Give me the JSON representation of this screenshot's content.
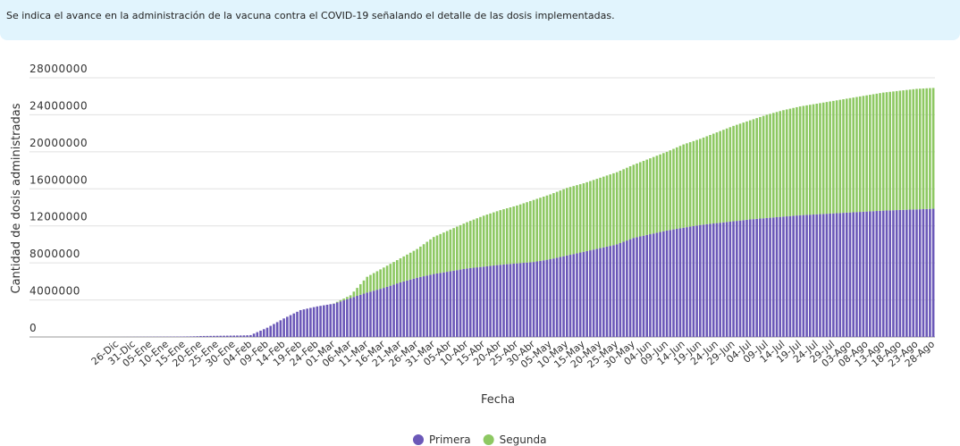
{
  "chart_data": {
    "type": "stacked-bar",
    "subtitle": "Se indica el avance en la administración de la vacuna contra el COVID-19 señalando el detalle de las dosis implementadas.",
    "x_label": "Fecha",
    "y_label": "Cantidad de dosis administradas",
    "ylim": [
      0,
      28000000
    ],
    "yticks": [
      0,
      4000000,
      8000000,
      12000000,
      16000000,
      20000000,
      24000000,
      28000000
    ],
    "grid": true,
    "legend": "bottom",
    "categories": [
      null,
      null,
      "26-Dic",
      null,
      null,
      null,
      null,
      "31-Dic",
      null,
      null,
      null,
      null,
      "05-Ene",
      null,
      null,
      null,
      null,
      "10-Ene",
      null,
      null,
      null,
      null,
      "15-Ene",
      null,
      null,
      null,
      null,
      "20-Ene",
      null,
      null,
      null,
      null,
      "25-Ene",
      null,
      null,
      null,
      null,
      "30-Ene",
      null,
      null,
      null,
      null,
      "04-Feb",
      null,
      null,
      null,
      null,
      "09-Feb",
      null,
      null,
      null,
      null,
      "14-Feb",
      null,
      null,
      null,
      null,
      "19-Feb",
      null,
      null,
      null,
      null,
      "24-Feb",
      null,
      null,
      null,
      null,
      "01-Mar",
      null,
      null,
      null,
      null,
      "06-Mar",
      null,
      null,
      null,
      null,
      "11-Mar",
      null,
      null,
      null,
      null,
      "16-Mar",
      null,
      null,
      null,
      null,
      "21-Mar",
      null,
      null,
      null,
      null,
      "26-Mar",
      null,
      null,
      null,
      null,
      "31-Mar",
      null,
      null,
      null,
      null,
      "05-Abr",
      null,
      null,
      null,
      null,
      "10-Abr",
      null,
      null,
      null,
      null,
      "15-Abr",
      null,
      null,
      null,
      null,
      "20-Abr",
      null,
      null,
      null,
      null,
      "25-Abr",
      null,
      null,
      null,
      null,
      "30-Abr",
      null,
      null,
      null,
      null,
      "05-May",
      null,
      null,
      null,
      null,
      "10-May",
      null,
      null,
      null,
      null,
      "15-May",
      null,
      null,
      null,
      null,
      "20-May",
      null,
      null,
      null,
      null,
      "25-May",
      null,
      null,
      null,
      null,
      "30-May",
      null,
      null,
      null,
      null,
      "04-Jun",
      null,
      null,
      null,
      null,
      "09-Jun",
      null,
      null,
      null,
      null,
      "14-Jun",
      null,
      null,
      null,
      null,
      "19-Jun",
      null,
      null,
      null,
      null,
      "24-Jun",
      null,
      null,
      null,
      null,
      "29-Jun",
      null,
      null,
      null,
      null,
      "04-Jul",
      null,
      null,
      null,
      null,
      "09-Jul",
      null,
      null,
      null,
      null,
      "14-Jul",
      null,
      null,
      null,
      null,
      "19-Jul",
      null,
      null,
      null,
      null,
      "24-Jul",
      null,
      null,
      null,
      null,
      "29-Jul",
      null,
      null,
      null,
      null,
      "03-Ago",
      null,
      null,
      null,
      null,
      "08-Ago",
      null,
      null,
      null,
      null,
      "13-Ago",
      null,
      null,
      null,
      null,
      "18-Ago",
      null,
      null,
      null,
      null,
      "23-Ago",
      null,
      null,
      null,
      null,
      "28-Ago"
    ],
    "series": [
      {
        "name": "Primera",
        "color": "#6b58b8",
        "values": [
          3000,
          4000,
          5000,
          6000,
          8000,
          10000,
          12000,
          14000,
          16000,
          18000,
          20000,
          22000,
          24000,
          26000,
          28000,
          30000,
          32000,
          34000,
          36000,
          38000,
          40000,
          45000,
          50000,
          55000,
          60000,
          70000,
          80000,
          100000,
          105000,
          110000,
          115000,
          120000,
          125000,
          130000,
          135000,
          140000,
          145000,
          150000,
          155000,
          160000,
          170000,
          180000,
          200000,
          360000,
          520000,
          680000,
          840000,
          1000000,
          1200000,
          1400000,
          1600000,
          1800000,
          2000000,
          2180000,
          2360000,
          2540000,
          2720000,
          2900000,
          2980000,
          3060000,
          3140000,
          3220000,
          3300000,
          3360000,
          3420000,
          3480000,
          3540000,
          3600000,
          3720000,
          3840000,
          3960000,
          4080000,
          4200000,
          4320000,
          4440000,
          4560000,
          4680000,
          4800000,
          4900000,
          5000000,
          5100000,
          5200000,
          5300000,
          5420000,
          5540000,
          5660000,
          5780000,
          5900000,
          6000000,
          6100000,
          6200000,
          6300000,
          6400000,
          6480000,
          6560000,
          6640000,
          6720000,
          6800000,
          6860000,
          6920000,
          6980000,
          7040000,
          7100000,
          7160000,
          7220000,
          7280000,
          7340000,
          7400000,
          7440000,
          7480000,
          7520000,
          7560000,
          7600000,
          7640000,
          7680000,
          7720000,
          7760000,
          7800000,
          7830000,
          7860000,
          7890000,
          7920000,
          7950000,
          7980000,
          8010000,
          8040000,
          8070000,
          8100000,
          8160000,
          8220000,
          8280000,
          8340000,
          8400000,
          8480000,
          8560000,
          8640000,
          8720000,
          8800000,
          8880000,
          8960000,
          9040000,
          9120000,
          9200000,
          9280000,
          9360000,
          9440000,
          9520000,
          9600000,
          9680000,
          9760000,
          9840000,
          9920000,
          10000000,
          10140000,
          10280000,
          10420000,
          10560000,
          10700000,
          10780000,
          10860000,
          10940000,
          11020000,
          11100000,
          11180000,
          11260000,
          11340000,
          11420000,
          11500000,
          11560000,
          11620000,
          11680000,
          11740000,
          11800000,
          11860000,
          11920000,
          11980000,
          12040000,
          12100000,
          12140000,
          12180000,
          12220000,
          12260000,
          12300000,
          12340000,
          12380000,
          12420000,
          12460000,
          12500000,
          12540000,
          12580000,
          12620000,
          12660000,
          12700000,
          12730000,
          12760000,
          12790000,
          12820000,
          12850000,
          12880000,
          12910000,
          12940000,
          12970000,
          13000000,
          13030000,
          13060000,
          13090000,
          13120000,
          13150000,
          13170000,
          13190000,
          13210000,
          13230000,
          13250000,
          13270000,
          13290000,
          13310000,
          13330000,
          13350000,
          13370000,
          13390000,
          13410000,
          13430000,
          13450000,
          13470000,
          13490000,
          13510000,
          13530000,
          13550000,
          13570000,
          13590000,
          13610000,
          13630000,
          13650000,
          13664000,
          13678000,
          13692000,
          13706000,
          13720000,
          13732000,
          13744000,
          13756000,
          13768000,
          13780000,
          13794000,
          13808000,
          13822000,
          13836000,
          13850000
        ]
      },
      {
        "name": "Segunda",
        "color": "#8dc862",
        "values": [
          0,
          0,
          0,
          0,
          0,
          0,
          0,
          0,
          0,
          0,
          0,
          0,
          0,
          0,
          0,
          0,
          0,
          0,
          0,
          0,
          0,
          0,
          0,
          0,
          0,
          0,
          0,
          0,
          0,
          0,
          0,
          0,
          0,
          0,
          0,
          0,
          0,
          0,
          0,
          0,
          0,
          0,
          0,
          0,
          0,
          0,
          0,
          0,
          0,
          0,
          0,
          0,
          0,
          0,
          0,
          0,
          0,
          0,
          0,
          0,
          0,
          0,
          0,
          0,
          0,
          0,
          0,
          20000,
          76000,
          132000,
          188000,
          244000,
          300000,
          580000,
          860000,
          1140000,
          1420000,
          1700000,
          1800000,
          1900000,
          2000000,
          2100000,
          2200000,
          2280000,
          2360000,
          2440000,
          2520000,
          2600000,
          2700000,
          2800000,
          2900000,
          3000000,
          3100000,
          3280000,
          3460000,
          3640000,
          3820000,
          4000000,
          4100000,
          4200000,
          4300000,
          4400000,
          4500000,
          4600000,
          4700000,
          4800000,
          4900000,
          5000000,
          5100000,
          5200000,
          5300000,
          5400000,
          5500000,
          5580000,
          5660000,
          5740000,
          5820000,
          5900000,
          5970000,
          6040000,
          6110000,
          6180000,
          6250000,
          6340000,
          6430000,
          6520000,
          6610000,
          6700000,
          6760000,
          6820000,
          6880000,
          6940000,
          7000000,
          7060000,
          7120000,
          7180000,
          7240000,
          7300000,
          7320000,
          7340000,
          7360000,
          7380000,
          7400000,
          7440000,
          7480000,
          7520000,
          7560000,
          7600000,
          7640000,
          7680000,
          7720000,
          7760000,
          7800000,
          7820000,
          7840000,
          7860000,
          7880000,
          7900000,
          7960000,
          8020000,
          8080000,
          8140000,
          8200000,
          8260000,
          8320000,
          8380000,
          8440000,
          8500000,
          8600000,
          8700000,
          8800000,
          8900000,
          9000000,
          9060000,
          9120000,
          9180000,
          9240000,
          9300000,
          9400000,
          9500000,
          9600000,
          9700000,
          9800000,
          9900000,
          10000000,
          10100000,
          10200000,
          10300000,
          10380000,
          10460000,
          10540000,
          10620000,
          10700000,
          10790000,
          10880000,
          10970000,
          11060000,
          11150000,
          11220000,
          11290000,
          11360000,
          11430000,
          11500000,
          11550000,
          11600000,
          11650000,
          11700000,
          11750000,
          11790000,
          11830000,
          11870000,
          11910000,
          11950000,
          11990000,
          12030000,
          12070000,
          12110000,
          12150000,
          12190000,
          12230000,
          12270000,
          12310000,
          12350000,
          12390000,
          12430000,
          12470000,
          12510000,
          12550000,
          12590000,
          12630000,
          12670000,
          12710000,
          12750000,
          12776000,
          12802000,
          12828000,
          12854000,
          12880000,
          12908000,
          12936000,
          12964000,
          12992000,
          13020000,
          13026000,
          13032000,
          13038000,
          13044000,
          13050000
        ]
      }
    ]
  }
}
